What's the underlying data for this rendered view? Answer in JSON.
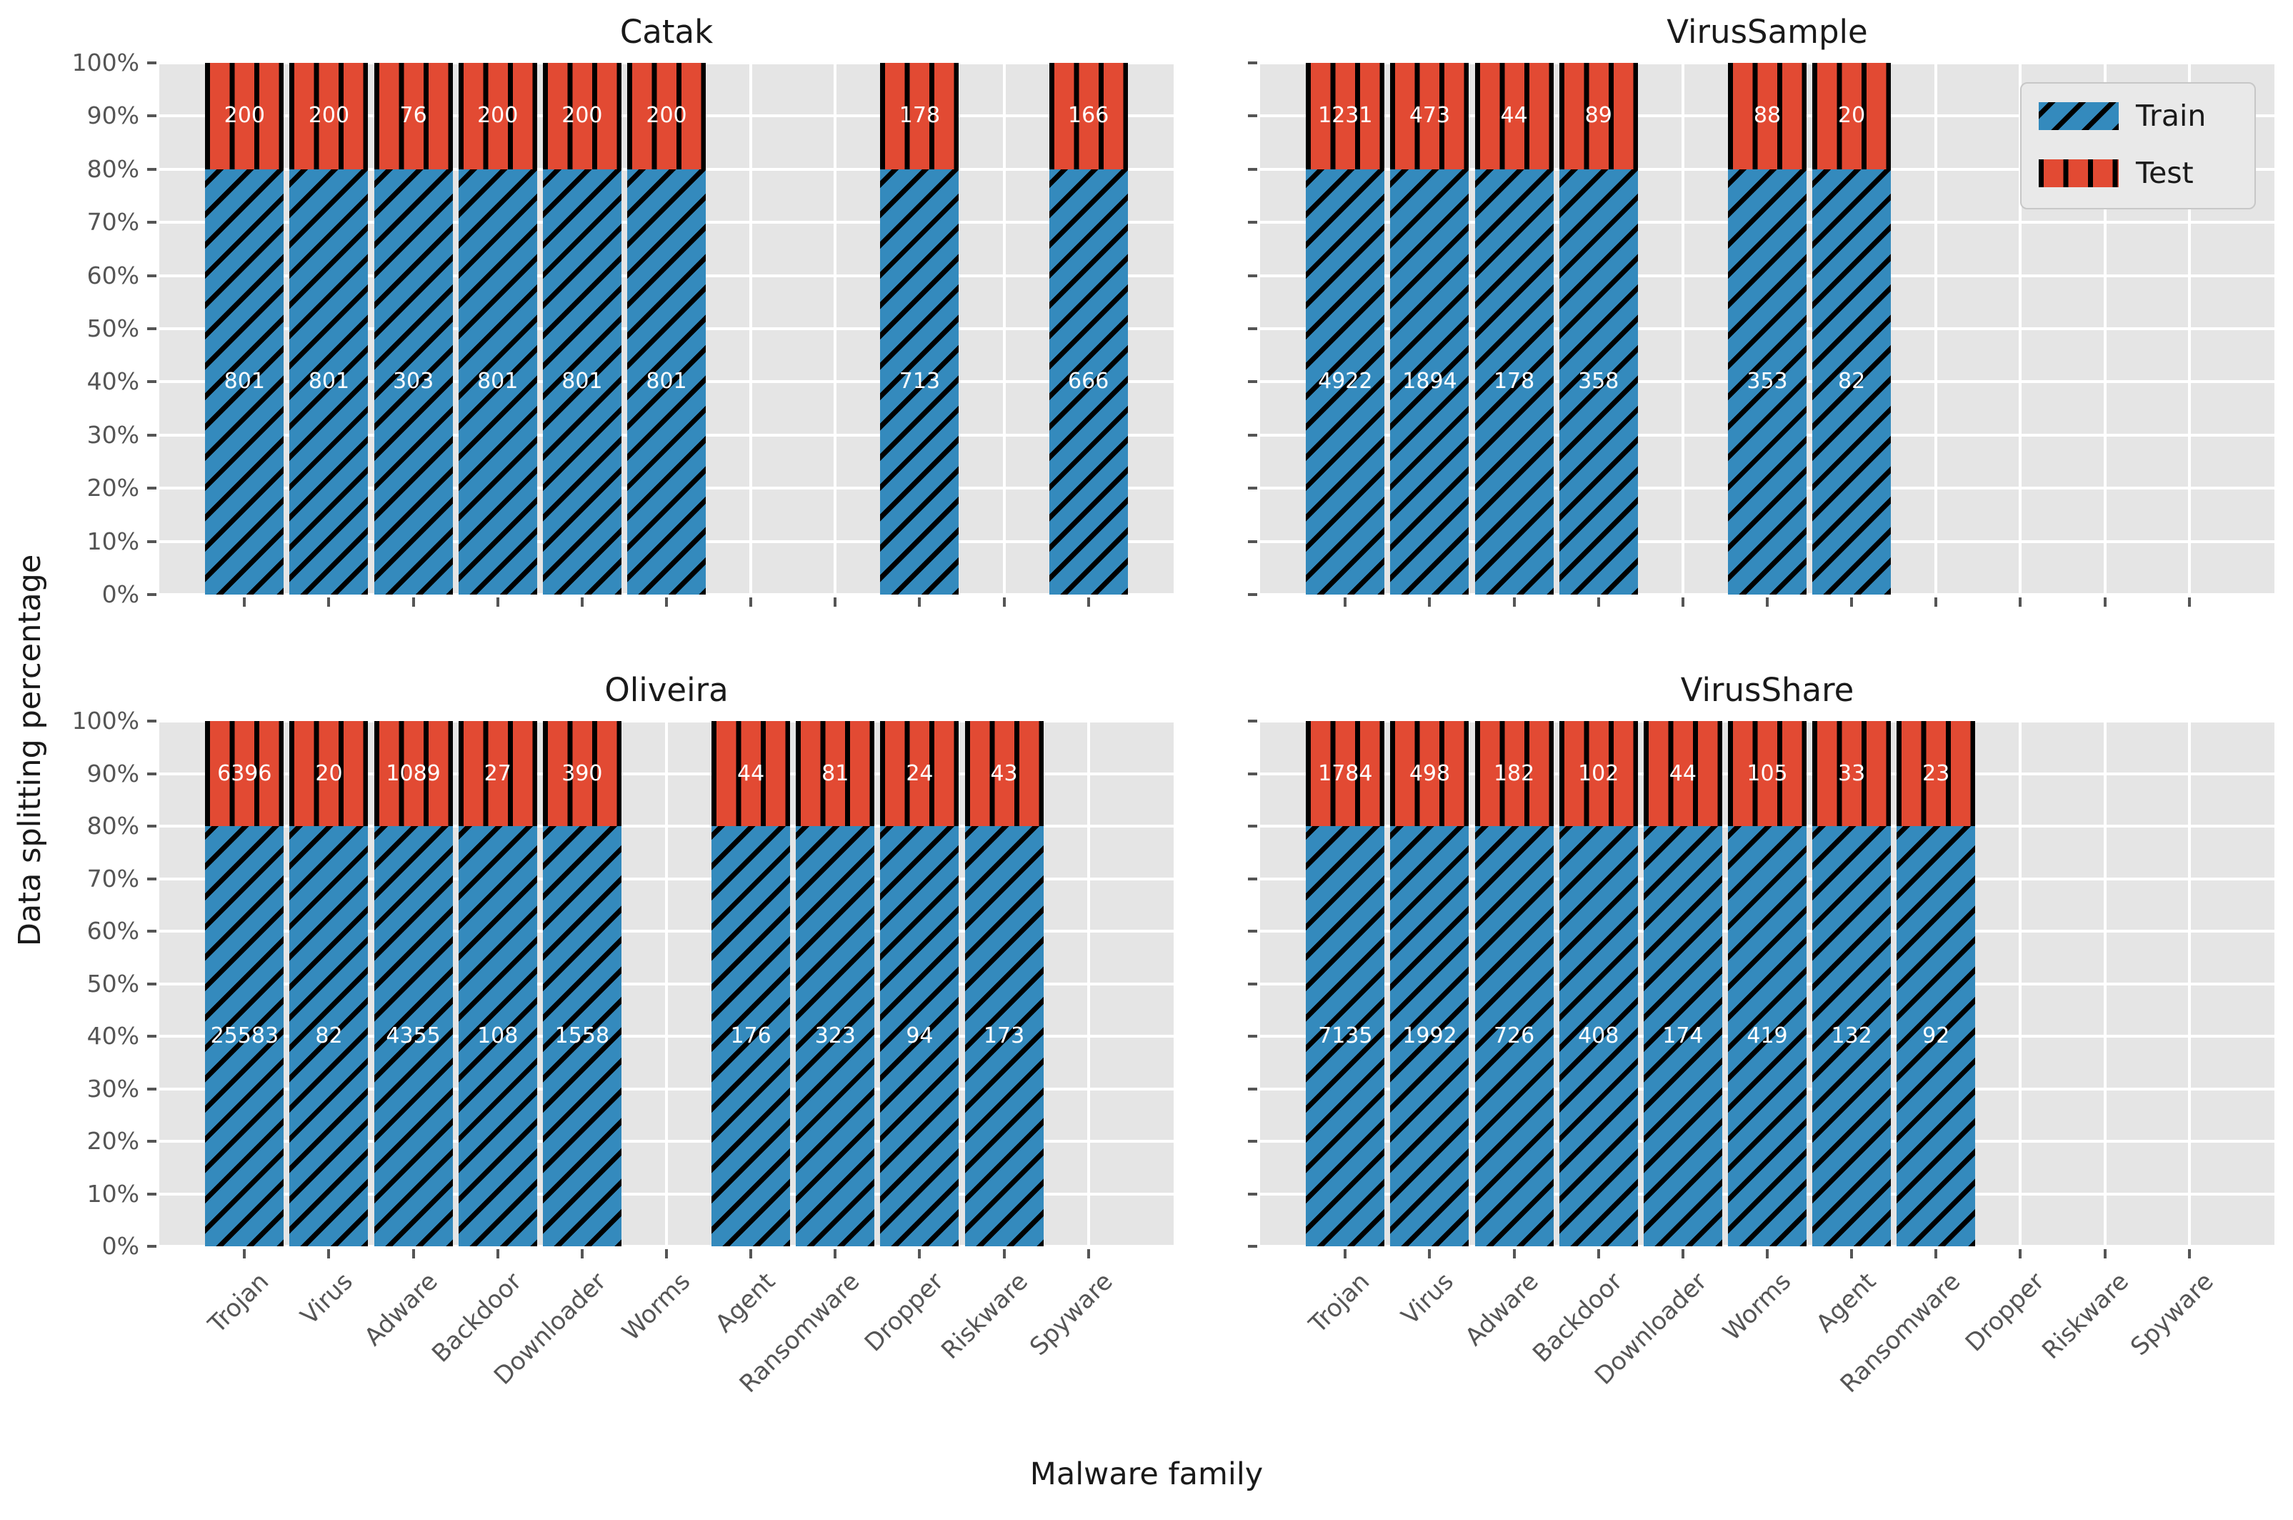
{
  "figure_title": "",
  "axis": {
    "xlabel": "Malware family",
    "ylabel": "Data splitting percentage",
    "y_ticks": [
      "0%",
      "10%",
      "20%",
      "30%",
      "40%",
      "50%",
      "60%",
      "70%",
      "80%",
      "90%",
      "100%"
    ]
  },
  "legend": {
    "train_label": "Train",
    "test_label": "Test",
    "position": "upper-right of VirusSample subplot"
  },
  "colors": {
    "train": "#348abd",
    "test": "#e24a33",
    "hatch": "#000000",
    "axes_background": "#e5e5e5",
    "grid": "#ffffff",
    "tick_text": "#555555",
    "title_text": "#1a1a1a",
    "bar_value_text": "#ffffff"
  },
  "chart_data": {
    "type": "bar",
    "subtype": "stacked-percentage",
    "ylim": [
      0,
      100
    ],
    "grid": true,
    "train_percent": 80,
    "test_percent": 20,
    "hatches": {
      "train": "/",
      "test": "|"
    },
    "categories": [
      "Trojan",
      "Virus",
      "Adware",
      "Backdoor",
      "Downloader",
      "Worms",
      "Agent",
      "Ransomware",
      "Dropper",
      "Riskware",
      "Spyware"
    ],
    "subplots": [
      {
        "title": "Catak",
        "series": [
          {
            "name": "Train",
            "values": [
              801,
              801,
              303,
              801,
              801,
              801,
              null,
              null,
              713,
              null,
              666
            ]
          },
          {
            "name": "Test",
            "values": [
              200,
              200,
              76,
              200,
              200,
              200,
              null,
              null,
              178,
              null,
              166
            ]
          }
        ]
      },
      {
        "title": "VirusSample",
        "series": [
          {
            "name": "Train",
            "values": [
              4922,
              1894,
              178,
              358,
              null,
              353,
              82,
              null,
              null,
              null,
              null
            ]
          },
          {
            "name": "Test",
            "values": [
              1231,
              473,
              44,
              89,
              null,
              88,
              20,
              null,
              null,
              null,
              null
            ]
          }
        ]
      },
      {
        "title": "Oliveira",
        "series": [
          {
            "name": "Train",
            "values": [
              25583,
              82,
              4355,
              108,
              1558,
              null,
              176,
              323,
              94,
              173,
              null
            ]
          },
          {
            "name": "Test",
            "values": [
              6396,
              20,
              1089,
              27,
              390,
              null,
              44,
              81,
              24,
              43,
              null
            ]
          }
        ]
      },
      {
        "title": "VirusShare",
        "series": [
          {
            "name": "Train",
            "values": [
              7135,
              1992,
              726,
              408,
              174,
              419,
              132,
              92,
              null,
              null,
              null
            ]
          },
          {
            "name": "Test",
            "values": [
              1784,
              498,
              182,
              102,
              44,
              105,
              33,
              23,
              null,
              null,
              null
            ]
          }
        ]
      }
    ]
  }
}
